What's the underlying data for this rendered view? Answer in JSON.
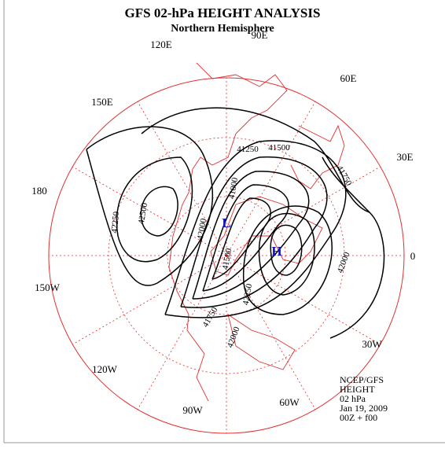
{
  "header": {
    "title": "GFS 02-hPa HEIGHT ANALYSIS",
    "subtitle": "Northern Hemisphere"
  },
  "longitude_labels": [
    "90E",
    "120E",
    "60E",
    "150E",
    "30E",
    "180",
    "0",
    "150W",
    "30W",
    "120W",
    "90W",
    "60W"
  ],
  "contour_labels": [
    "41250",
    "41500",
    "41750",
    "42000",
    "42250",
    "42500",
    "42000",
    "41000",
    "41500",
    "42250",
    "42000",
    "41750"
  ],
  "pressure_centers": [
    "L",
    "H"
  ],
  "info": [
    "NCEP/GFS",
    "HEIGHT",
    "02 hPa",
    "Jan 19, 2009",
    "00Z + f00"
  ]
}
